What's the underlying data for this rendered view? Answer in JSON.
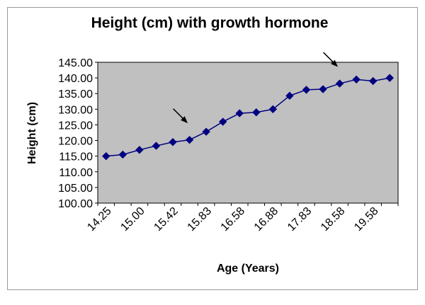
{
  "chart_data": {
    "type": "line",
    "title": "Height (cm) with growth hormone",
    "xlabel": "Age (Years)",
    "ylabel": "Height (cm)",
    "x_tick_labels": [
      "14.25",
      "15.00",
      "15.42",
      "15.83",
      "16.58",
      "16.88",
      "17.83",
      "18.58",
      "19.58"
    ],
    "y_tick_labels": [
      "100.00",
      "105.00",
      "110.00",
      "115.00",
      "120.00",
      "125.00",
      "130.00",
      "135.00",
      "140.00",
      "145.00"
    ],
    "ylim": [
      100,
      145
    ],
    "grid": false,
    "legend": "none",
    "series": [
      {
        "color": "#000080",
        "marker": "diamond",
        "values": [
          115.0,
          115.5,
          117.0,
          118.3,
          119.5,
          120.2,
          122.8,
          126.0,
          128.7,
          129.0,
          130.0,
          134.3,
          136.2,
          136.4,
          138.2,
          139.5,
          139.0,
          140.0
        ]
      }
    ],
    "annotations": [
      {
        "type": "arrow",
        "near_point_index": 5
      },
      {
        "type": "arrow",
        "near_point_index": 14
      }
    ],
    "plot_background": "#c0c0c0"
  }
}
